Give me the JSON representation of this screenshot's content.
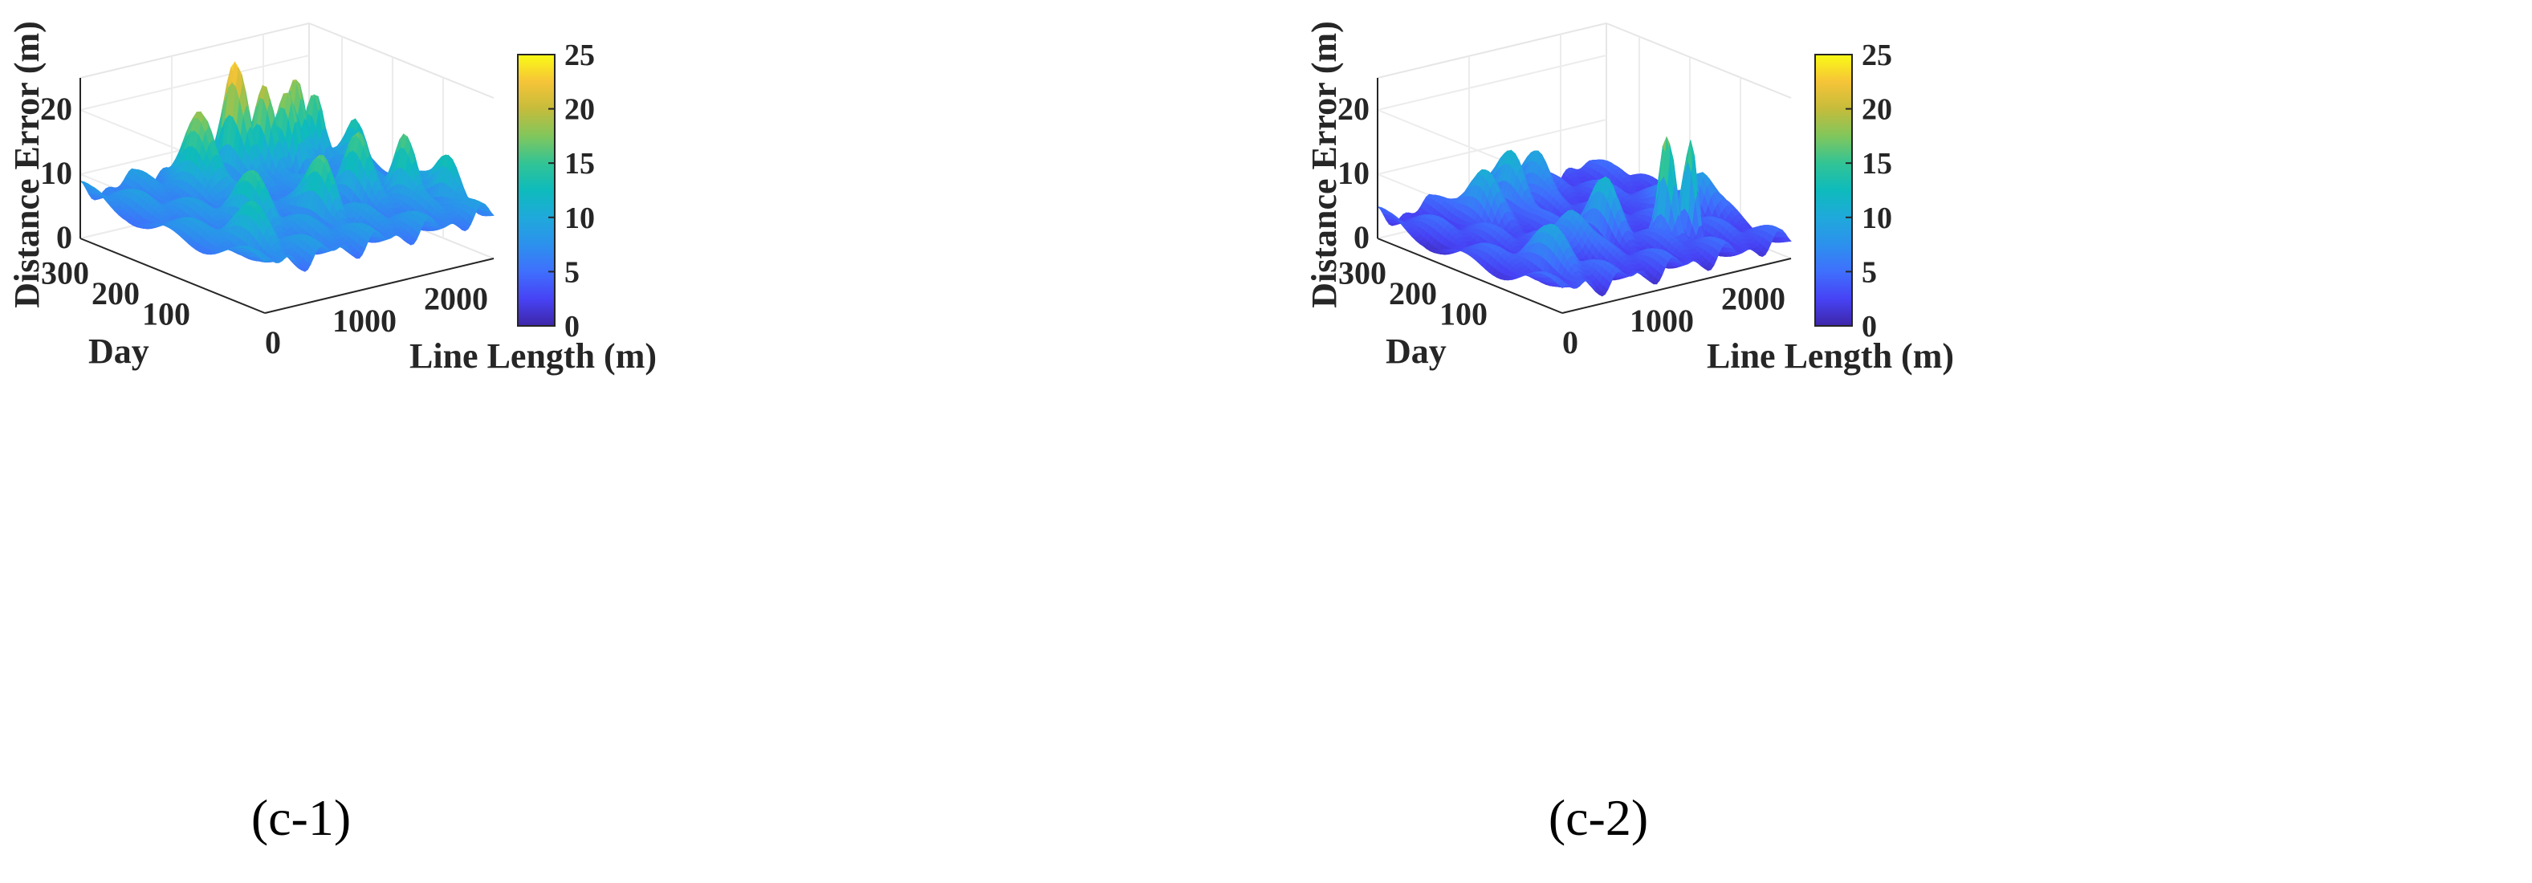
{
  "chart_data": [
    {
      "type": "surface",
      "panel_label": "(c-1)",
      "zlabel": "Distance Error (m)",
      "xlabel": "Line Length (m)",
      "ylabel": "Day",
      "z_ticks": [
        0,
        10,
        20
      ],
      "x_ticks": [
        0,
        1000,
        2000
      ],
      "y_ticks": [
        100,
        200,
        300
      ],
      "zlim": [
        0,
        25
      ],
      "xlim": [
        0,
        2500
      ],
      "ylim": [
        0,
        365
      ],
      "colorbar": {
        "ticks": [
          0,
          5,
          10,
          15,
          20,
          25
        ],
        "range": [
          0,
          25
        ],
        "colormap": "parula"
      },
      "base_level": 7,
      "peaks": [
        {
          "x": 320,
          "y": 80,
          "z": 12,
          "w": 120
        },
        {
          "x": 950,
          "y": 300,
          "z": 20,
          "w": 110
        },
        {
          "x": 1450,
          "y": 320,
          "z": 24,
          "w": 90
        },
        {
          "x": 1650,
          "y": 300,
          "z": 21,
          "w": 80
        },
        {
          "x": 1850,
          "y": 290,
          "z": 19,
          "w": 80
        },
        {
          "x": 2050,
          "y": 310,
          "z": 20,
          "w": 70
        },
        {
          "x": 2200,
          "y": 300,
          "z": 19,
          "w": 70
        },
        {
          "x": 2380,
          "y": 250,
          "z": 16,
          "w": 80
        },
        {
          "x": 2450,
          "y": 80,
          "z": 14,
          "w": 90
        },
        {
          "x": 700,
          "y": 150,
          "z": 13,
          "w": 120
        },
        {
          "x": 1300,
          "y": 120,
          "z": 15,
          "w": 100
        },
        {
          "x": 1900,
          "y": 160,
          "z": 15,
          "w": 90
        },
        {
          "x": 2200,
          "y": 120,
          "z": 17,
          "w": 80
        }
      ]
    },
    {
      "type": "surface",
      "panel_label": "(c-2)",
      "zlabel": "Distance Error (m)",
      "xlabel": "Line Length (m)",
      "ylabel": "Day",
      "z_ticks": [
        0,
        10,
        20
      ],
      "x_ticks": [
        0,
        1000,
        2000
      ],
      "y_ticks": [
        100,
        200,
        300
      ],
      "zlim": [
        0,
        25
      ],
      "xlim": [
        0,
        2500
      ],
      "ylim": [
        0,
        365
      ],
      "colorbar": {
        "ticks": [
          0,
          5,
          10,
          15,
          20,
          25
        ],
        "range": [
          0,
          25
        ],
        "colormap": "parula"
      },
      "base_level": 3,
      "peaks": [
        {
          "x": 350,
          "y": 80,
          "z": 8,
          "w": 140
        },
        {
          "x": 700,
          "y": 280,
          "z": 11,
          "w": 110
        },
        {
          "x": 1100,
          "y": 300,
          "z": 12,
          "w": 110
        },
        {
          "x": 1500,
          "y": 320,
          "z": 11,
          "w": 100
        },
        {
          "x": 1700,
          "y": 100,
          "z": 21,
          "w": 60
        },
        {
          "x": 1900,
          "y": 90,
          "z": 18,
          "w": 50
        },
        {
          "x": 1300,
          "y": 150,
          "z": 10,
          "w": 100
        },
        {
          "x": 2100,
          "y": 180,
          "z": 8,
          "w": 100
        },
        {
          "x": 2350,
          "y": 150,
          "z": 9,
          "w": 90
        },
        {
          "x": 900,
          "y": 150,
          "z": 9,
          "w": 110
        }
      ]
    }
  ]
}
